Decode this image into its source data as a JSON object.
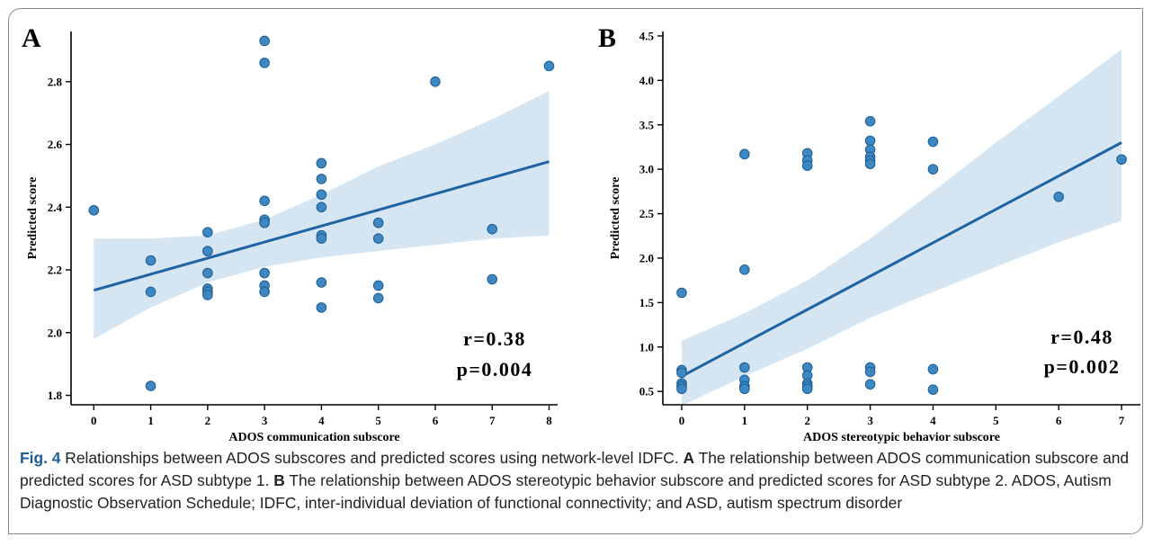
{
  "colors": {
    "point": "#3d87c2",
    "point_edge": "#1f5d92",
    "line": "#1e63a3",
    "band": "#cfe0f0",
    "axis": "#000000",
    "fig_label": "#1d5c96"
  },
  "caption": {
    "fig_label": "Fig. 4",
    "intro": " Relationships between ADOS subscores and predicted scores using network-level IDFC. ",
    "panel_a": "A",
    "text_a": " The relationship between ADOS communication subscore and predicted scores for ASD subtype 1. ",
    "panel_b": "B",
    "text_b": " The relationship between ADOS stereotypic behavior subscore and predicted scores for ASD subtype 2. ADOS, Autism Diagnostic Observation Schedule; IDFC, inter-individual deviation of functional connectivity; and ASD, autism spectrum disorder"
  },
  "chart_data": [
    {
      "type": "scatter",
      "panel_label": "A",
      "xlabel": "ADOS communication subscore",
      "ylabel": "Predicted score",
      "xticks": [
        0,
        1,
        2,
        3,
        4,
        5,
        6,
        7,
        8
      ],
      "yticks": [
        1.8,
        2.0,
        2.2,
        2.4,
        2.6,
        2.8
      ],
      "xlim": [
        -0.4,
        8.15
      ],
      "ylim": [
        1.77,
        2.96
      ],
      "points": [
        [
          0,
          2.39
        ],
        [
          1,
          2.23
        ],
        [
          1,
          2.13
        ],
        [
          1,
          1.83
        ],
        [
          2,
          2.32
        ],
        [
          2,
          2.26
        ],
        [
          2,
          2.19
        ],
        [
          2,
          2.14
        ],
        [
          2,
          2.13
        ],
        [
          2,
          2.12
        ],
        [
          3,
          2.93
        ],
        [
          3,
          2.86
        ],
        [
          3,
          2.42
        ],
        [
          3,
          2.36
        ],
        [
          3,
          2.35
        ],
        [
          3,
          2.19
        ],
        [
          3,
          2.15
        ],
        [
          3,
          2.13
        ],
        [
          4,
          2.54
        ],
        [
          4,
          2.49
        ],
        [
          4,
          2.44
        ],
        [
          4,
          2.4
        ],
        [
          4,
          2.31
        ],
        [
          4,
          2.3
        ],
        [
          4,
          2.16
        ],
        [
          4,
          2.08
        ],
        [
          5,
          2.35
        ],
        [
          5,
          2.3
        ],
        [
          5,
          2.15
        ],
        [
          5,
          2.11
        ],
        [
          6,
          2.8
        ],
        [
          7,
          2.33
        ],
        [
          7,
          2.17
        ],
        [
          8,
          2.85
        ]
      ],
      "fit_line": [
        [
          0,
          2.135
        ],
        [
          8,
          2.545
        ]
      ],
      "ci_band": {
        "x": [
          0,
          1,
          2,
          3,
          4,
          5,
          6,
          7,
          8
        ],
        "upper": [
          2.3,
          2.3,
          2.31,
          2.36,
          2.44,
          2.53,
          2.6,
          2.68,
          2.77
        ],
        "lower": [
          1.98,
          2.08,
          2.16,
          2.21,
          2.24,
          2.26,
          2.28,
          2.3,
          2.31
        ]
      },
      "annotation": [
        "r=0.38",
        "p=0.004"
      ]
    },
    {
      "type": "scatter",
      "panel_label": "B",
      "xlabel": "ADOS stereotypic behavior subscore",
      "ylabel": "Predicted score",
      "xticks": [
        0,
        1,
        2,
        3,
        4,
        5,
        6,
        7
      ],
      "yticks": [
        0.5,
        1.0,
        1.5,
        2.0,
        2.5,
        3.0,
        3.5,
        4.0,
        4.5
      ],
      "xlim": [
        -0.3,
        7.3
      ],
      "ylim": [
        0.35,
        4.55
      ],
      "points": [
        [
          0,
          1.61
        ],
        [
          0,
          0.74
        ],
        [
          0,
          0.71
        ],
        [
          0,
          0.59
        ],
        [
          0,
          0.56
        ],
        [
          0,
          0.53
        ],
        [
          1,
          3.17
        ],
        [
          1,
          1.87
        ],
        [
          1,
          0.77
        ],
        [
          1,
          0.63
        ],
        [
          1,
          0.56
        ],
        [
          1,
          0.53
        ],
        [
          2,
          3.18
        ],
        [
          2,
          3.1
        ],
        [
          2,
          3.04
        ],
        [
          2,
          0.77
        ],
        [
          2,
          0.68
        ],
        [
          2,
          0.59
        ],
        [
          2,
          0.56
        ],
        [
          2,
          0.53
        ],
        [
          3,
          3.54
        ],
        [
          3,
          3.32
        ],
        [
          3,
          3.22
        ],
        [
          3,
          3.14
        ],
        [
          3,
          3.1
        ],
        [
          3,
          3.06
        ],
        [
          3,
          0.77
        ],
        [
          3,
          0.72
        ],
        [
          3,
          0.58
        ],
        [
          4,
          3.31
        ],
        [
          4,
          3.0
        ],
        [
          4,
          0.75
        ],
        [
          4,
          0.52
        ],
        [
          6,
          2.69
        ],
        [
          7,
          3.11
        ]
      ],
      "fit_line": [
        [
          0,
          0.67
        ],
        [
          7,
          3.3
        ]
      ],
      "ci_band": {
        "x": [
          0,
          1,
          2,
          3,
          4,
          5,
          6,
          7
        ],
        "upper": [
          1.07,
          1.38,
          1.75,
          2.22,
          2.75,
          3.3,
          3.82,
          4.35
        ],
        "lower": [
          0.34,
          0.67,
          0.98,
          1.33,
          1.62,
          1.9,
          2.18,
          2.42
        ]
      },
      "annotation": [
        "r=0.48",
        "p=0.002"
      ]
    }
  ]
}
